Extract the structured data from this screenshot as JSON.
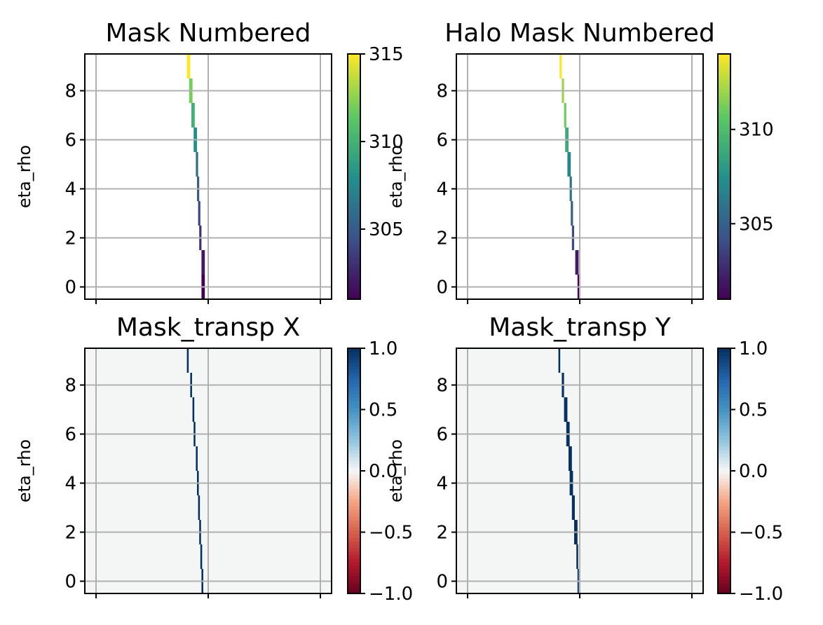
{
  "chart_data": [
    {
      "type": "heatmap",
      "title": "Mask Numbered",
      "ylabel": "eta_rho",
      "xlabel": "",
      "ylim": [
        -0.5,
        9.5
      ],
      "xlim": [
        -0.5,
        10.5
      ],
      "yticks": [
        0,
        2,
        4,
        6,
        8
      ],
      "grid": true,
      "colormap": "viridis",
      "colorbar": {
        "range": [
          301,
          315
        ],
        "ticks": [
          305,
          310,
          315
        ]
      },
      "background": "#ffffff",
      "cells": [
        {
          "x": 4.7,
          "x2": 4.85,
          "y": 0,
          "value": 301
        },
        {
          "x": 4.7,
          "x2": 4.85,
          "y": 1,
          "value": 302
        },
        {
          "x": 4.6,
          "x2": 4.7,
          "y": 2,
          "value": 303
        },
        {
          "x": 4.55,
          "x2": 4.65,
          "y": 3,
          "value": 304
        },
        {
          "x": 4.5,
          "x2": 4.6,
          "y": 4,
          "value": 305
        },
        {
          "x": 4.45,
          "x2": 4.55,
          "y": 5,
          "value": 306
        },
        {
          "x": 4.35,
          "x2": 4.5,
          "y": 6,
          "value": 308
        },
        {
          "x": 4.25,
          "x2": 4.4,
          "y": 7,
          "value": 310
        },
        {
          "x": 4.15,
          "x2": 4.3,
          "y": 8,
          "value": 312
        },
        {
          "x": 4.05,
          "x2": 4.2,
          "y": 9,
          "value": 315
        }
      ]
    },
    {
      "type": "heatmap",
      "title": "Halo Mask Numbered",
      "ylabel": "eta_rho",
      "xlabel": "",
      "ylim": [
        -0.5,
        9.5
      ],
      "xlim": [
        -0.5,
        10.5
      ],
      "yticks": [
        0,
        2,
        4,
        6,
        8
      ],
      "grid": true,
      "colormap": "viridis",
      "colorbar": {
        "range": [
          301,
          314
        ],
        "ticks": [
          305,
          310
        ]
      },
      "background": "#ffffff",
      "cells": [
        {
          "x": 4.9,
          "x2": 5.0,
          "y": 0,
          "value": 301
        },
        {
          "x": 4.8,
          "x2": 4.95,
          "y": 1,
          "value": 302
        },
        {
          "x": 4.65,
          "x2": 4.75,
          "y": 2,
          "value": 304
        },
        {
          "x": 4.6,
          "x2": 4.7,
          "y": 3,
          "value": 305
        },
        {
          "x": 4.55,
          "x2": 4.65,
          "y": 4,
          "value": 306
        },
        {
          "x": 4.45,
          "x2": 4.6,
          "y": 5,
          "value": 307
        },
        {
          "x": 4.35,
          "x2": 4.5,
          "y": 6,
          "value": 309
        },
        {
          "x": 4.3,
          "x2": 4.4,
          "y": 7,
          "value": 311
        },
        {
          "x": 4.2,
          "x2": 4.3,
          "y": 8,
          "value": 312
        },
        {
          "x": 4.1,
          "x2": 4.2,
          "y": 9,
          "value": 314
        }
      ]
    },
    {
      "type": "heatmap",
      "title": "Mask_transp X",
      "ylabel": "eta_rho",
      "xlabel": "",
      "ylim": [
        -0.5,
        9.5
      ],
      "xlim": [
        -0.5,
        10.5
      ],
      "yticks": [
        0,
        2,
        4,
        6,
        8
      ],
      "grid": true,
      "colormap": "RdBu",
      "colorbar": {
        "range": [
          -1.0,
          1.0
        ],
        "ticks": [
          -1.0,
          -0.5,
          0.0,
          0.5,
          1.0
        ]
      },
      "background": "#f4f6f5",
      "cells": [
        {
          "x": 4.7,
          "x2": 4.78,
          "y": 0,
          "value": 1.0
        },
        {
          "x": 4.65,
          "x2": 4.73,
          "y": 1,
          "value": 1.0
        },
        {
          "x": 4.6,
          "x2": 4.68,
          "y": 2,
          "value": 1.0
        },
        {
          "x": 4.55,
          "x2": 4.63,
          "y": 3,
          "value": 1.0
        },
        {
          "x": 4.5,
          "x2": 4.58,
          "y": 4,
          "value": 1.0
        },
        {
          "x": 4.45,
          "x2": 4.53,
          "y": 5,
          "value": 1.0
        },
        {
          "x": 4.35,
          "x2": 4.43,
          "y": 6,
          "value": 1.0
        },
        {
          "x": 4.3,
          "x2": 4.38,
          "y": 7,
          "value": 1.0
        },
        {
          "x": 4.2,
          "x2": 4.28,
          "y": 8,
          "value": 1.0
        },
        {
          "x": 4.05,
          "x2": 4.13,
          "y": 9,
          "value": 1.0
        }
      ]
    },
    {
      "type": "heatmap",
      "title": "Mask_transp Y",
      "ylabel": "eta_rho",
      "xlabel": "",
      "ylim": [
        -0.5,
        9.5
      ],
      "xlim": [
        -0.5,
        10.5
      ],
      "yticks": [
        0,
        2,
        4,
        6,
        8
      ],
      "grid": true,
      "colormap": "RdBu",
      "colorbar": {
        "range": [
          -1.0,
          1.0
        ],
        "ticks": [
          -1.0,
          -0.5,
          0.0,
          0.5,
          1.0
        ]
      },
      "background": "#f4f6f5",
      "cells": [
        {
          "x": 4.9,
          "x2": 4.96,
          "y": 0,
          "value": 1.0
        },
        {
          "x": 4.85,
          "x2": 4.93,
          "y": 1,
          "value": 1.0
        },
        {
          "x": 4.75,
          "x2": 4.9,
          "y": 2,
          "value": 1.0
        },
        {
          "x": 4.65,
          "x2": 4.78,
          "y": 3,
          "value": 1.0
        },
        {
          "x": 4.55,
          "x2": 4.7,
          "y": 4,
          "value": 1.0
        },
        {
          "x": 4.5,
          "x2": 4.65,
          "y": 5,
          "value": 1.0
        },
        {
          "x": 4.4,
          "x2": 4.55,
          "y": 6,
          "value": 1.0
        },
        {
          "x": 4.3,
          "x2": 4.45,
          "y": 7,
          "value": 1.0
        },
        {
          "x": 4.2,
          "x2": 4.3,
          "y": 8,
          "value": 1.0
        },
        {
          "x": 4.05,
          "x2": 4.13,
          "y": 9,
          "value": 1.0
        }
      ]
    }
  ]
}
